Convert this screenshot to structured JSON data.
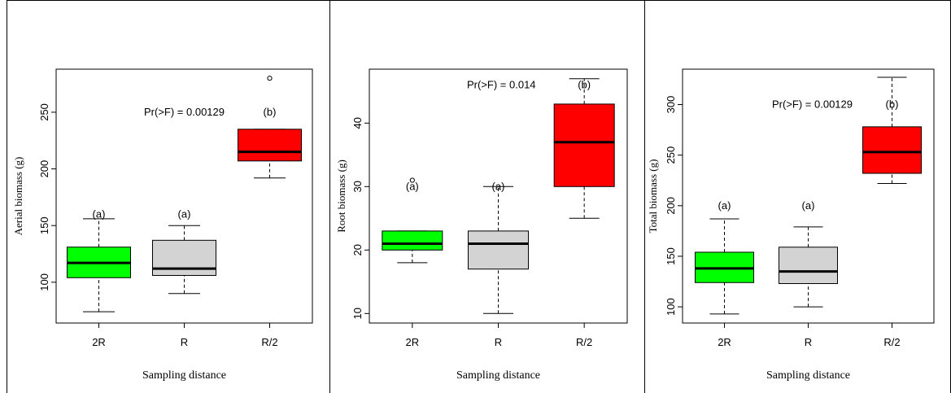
{
  "chart_data": [
    {
      "type": "box",
      "ylabel": "Aerial biomass (g)",
      "xlabel": "Sampling distance",
      "categories": [
        "2R",
        "R",
        "R/2"
      ],
      "colors": [
        "#00ff00",
        "#d3d3d3",
        "#ff0000"
      ],
      "ylim": [
        64,
        288
      ],
      "yticks": [
        100,
        150,
        200,
        250
      ],
      "boxes": [
        {
          "min": 74,
          "q1": 104,
          "median": 117,
          "q3": 131,
          "max": 156,
          "outliers": []
        },
        {
          "min": 90,
          "q1": 106,
          "median": 112,
          "q3": 137,
          "max": 150,
          "outliers": []
        },
        {
          "min": 192,
          "q1": 207,
          "median": 215,
          "q3": 235,
          "max": 235,
          "outliers": [
            280
          ]
        }
      ],
      "letters": [
        "(a)",
        "(a)",
        "(b)"
      ],
      "letter_y": [
        160,
        160,
        250
      ],
      "annotation": "Pr(>F) = 0.00129",
      "annotation_y": 250
    },
    {
      "type": "box",
      "ylabel": "Root biomass (g)",
      "xlabel": "Sampling distance",
      "categories": [
        "2R",
        "R",
        "R/2"
      ],
      "colors": [
        "#00ff00",
        "#d3d3d3",
        "#ff0000"
      ],
      "ylim": [
        8.5,
        48.5
      ],
      "yticks": [
        10,
        20,
        30,
        40
      ],
      "boxes": [
        {
          "min": 18,
          "q1": 20,
          "median": 21,
          "q3": 23,
          "max": 23,
          "outliers": [
            31
          ]
        },
        {
          "min": 10,
          "q1": 17,
          "median": 21,
          "q3": 23,
          "max": 30,
          "outliers": []
        },
        {
          "min": 25,
          "q1": 30,
          "median": 37,
          "q3": 43,
          "max": 47,
          "outliers": []
        }
      ],
      "letters": [
        "(a)",
        "(a)",
        "(b)"
      ],
      "letter_y": [
        30,
        30,
        46
      ],
      "annotation": "Pr(>F) = 0.014",
      "annotation_y": 46
    },
    {
      "type": "box",
      "ylabel": "Total biomass (g)",
      "xlabel": "Sampling distance",
      "categories": [
        "2R",
        "R",
        "R/2"
      ],
      "colors": [
        "#00ff00",
        "#d3d3d3",
        "#ff0000"
      ],
      "ylim": [
        84,
        335
      ],
      "yticks": [
        100,
        150,
        200,
        250,
        300
      ],
      "boxes": [
        {
          "min": 93,
          "q1": 124,
          "median": 138,
          "q3": 154,
          "max": 187,
          "outliers": []
        },
        {
          "min": 100,
          "q1": 123,
          "median": 135,
          "q3": 159,
          "max": 179,
          "outliers": []
        },
        {
          "min": 222,
          "q1": 232,
          "median": 253,
          "q3": 278,
          "max": 327,
          "outliers": []
        }
      ],
      "letters": [
        "(a)",
        "(a)",
        "(b)"
      ],
      "letter_y": [
        200,
        200,
        300
      ],
      "annotation": "Pr(>F) = 0.00129",
      "annotation_y": 300
    }
  ]
}
